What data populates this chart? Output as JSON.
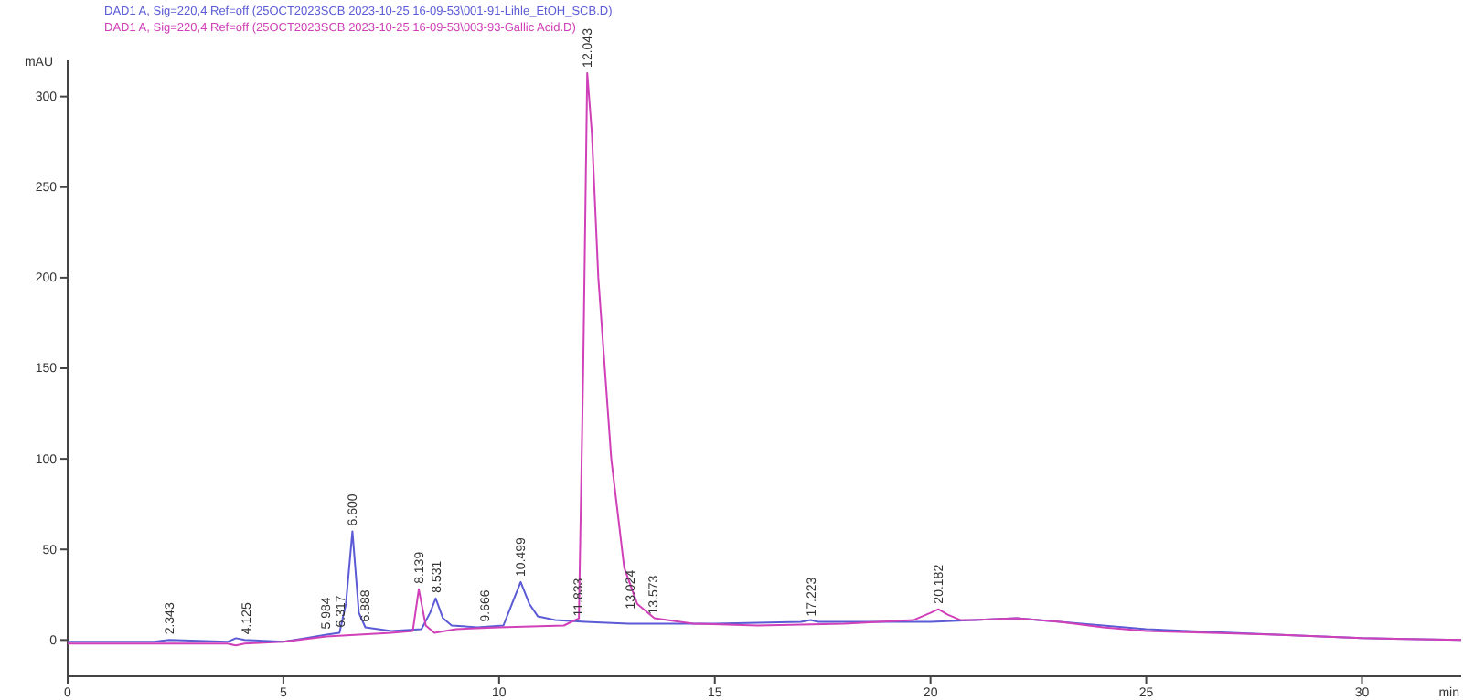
{
  "chart_data": {
    "type": "line",
    "xlabel": "min",
    "ylabel": "mAU",
    "xlim": [
      0,
      32.3
    ],
    "ylim": [
      -20,
      320
    ],
    "xticks": [
      0,
      5,
      10,
      15,
      20,
      25,
      30
    ],
    "yticks": [
      0,
      50,
      100,
      150,
      200,
      250,
      300
    ],
    "legend": "top left",
    "grid": false,
    "marker": "none",
    "line_style": "solid",
    "series": [
      {
        "name": "DAD1 A, Sig=220,4 Ref=off (25OCT2023SCB 2023-10-25 16-09-53\\001-91-Lihle_EtOH_SCB.D)",
        "color": "#5b5bd6",
        "x": [
          0,
          2,
          2.35,
          3.7,
          3.9,
          4.1,
          5,
          5.5,
          6.0,
          6.3,
          6.45,
          6.6,
          6.75,
          6.9,
          7.5,
          8.2,
          8.4,
          8.53,
          8.7,
          8.9,
          9.5,
          10.1,
          10.3,
          10.5,
          10.7,
          10.9,
          11.3,
          12,
          13,
          15,
          17,
          17.22,
          17.4,
          20,
          21,
          22,
          23,
          25,
          28,
          30,
          32.3
        ],
        "values": [
          -1,
          -1,
          0,
          -1,
          1,
          0,
          -1,
          1,
          3,
          4,
          20,
          60,
          15,
          7,
          5,
          6,
          15,
          23,
          12,
          8,
          7,
          8,
          20,
          32,
          20,
          13,
          11,
          10,
          9,
          9,
          10,
          11,
          10,
          10,
          11,
          12,
          10,
          6,
          3,
          1,
          0
        ]
      },
      {
        "name": "DAD1 A, Sig=220,4 Ref=off (25OCT2023SCB 2023-10-25 16-09-53\\003-93-Gallic Acid.D)",
        "color": "#d040b8",
        "x": [
          0,
          3.7,
          3.9,
          4.1,
          5,
          6,
          7.5,
          8.0,
          8.139,
          8.3,
          8.5,
          9,
          10,
          11.5,
          11.85,
          11.95,
          12.043,
          12.15,
          12.3,
          12.6,
          12.9,
          13.2,
          13.6,
          14.5,
          16,
          18,
          19.6,
          20.0,
          20.182,
          20.4,
          20.7,
          21,
          22,
          23,
          24,
          25,
          28,
          30,
          32.3
        ],
        "values": [
          -2,
          -2,
          -3,
          -2,
          -1,
          2,
          4,
          5,
          28,
          8,
          4,
          6,
          7,
          8,
          12,
          150,
          313,
          280,
          200,
          100,
          40,
          20,
          12,
          9,
          8,
          9,
          11,
          15,
          17,
          14,
          11,
          11,
          12,
          10,
          7,
          5,
          3,
          1,
          0
        ]
      }
    ],
    "annotations": [
      {
        "text": "2.343",
        "x": 2.343,
        "y": 0
      },
      {
        "text": "4.125",
        "x": 4.125,
        "y": 0
      },
      {
        "text": "5.984",
        "x": 5.984,
        "y": 3
      },
      {
        "text": "6.317",
        "x": 6.317,
        "y": 4
      },
      {
        "text": "6.600",
        "x": 6.6,
        "y": 60
      },
      {
        "text": "6.888",
        "x": 6.888,
        "y": 7
      },
      {
        "text": "8.139",
        "x": 8.139,
        "y": 28
      },
      {
        "text": "8.531",
        "x": 8.531,
        "y": 23
      },
      {
        "text": "9.666",
        "x": 9.666,
        "y": 7
      },
      {
        "text": "10.499",
        "x": 10.499,
        "y": 32
      },
      {
        "text": "11.833",
        "x": 11.833,
        "y": 10
      },
      {
        "text": "12.043",
        "x": 12.043,
        "y": 313
      },
      {
        "text": "13.024",
        "x": 13.024,
        "y": 14
      },
      {
        "text": "13.573",
        "x": 13.573,
        "y": 11
      },
      {
        "text": "17.223",
        "x": 17.223,
        "y": 10
      },
      {
        "text": "20.182",
        "x": 20.182,
        "y": 17
      }
    ]
  }
}
